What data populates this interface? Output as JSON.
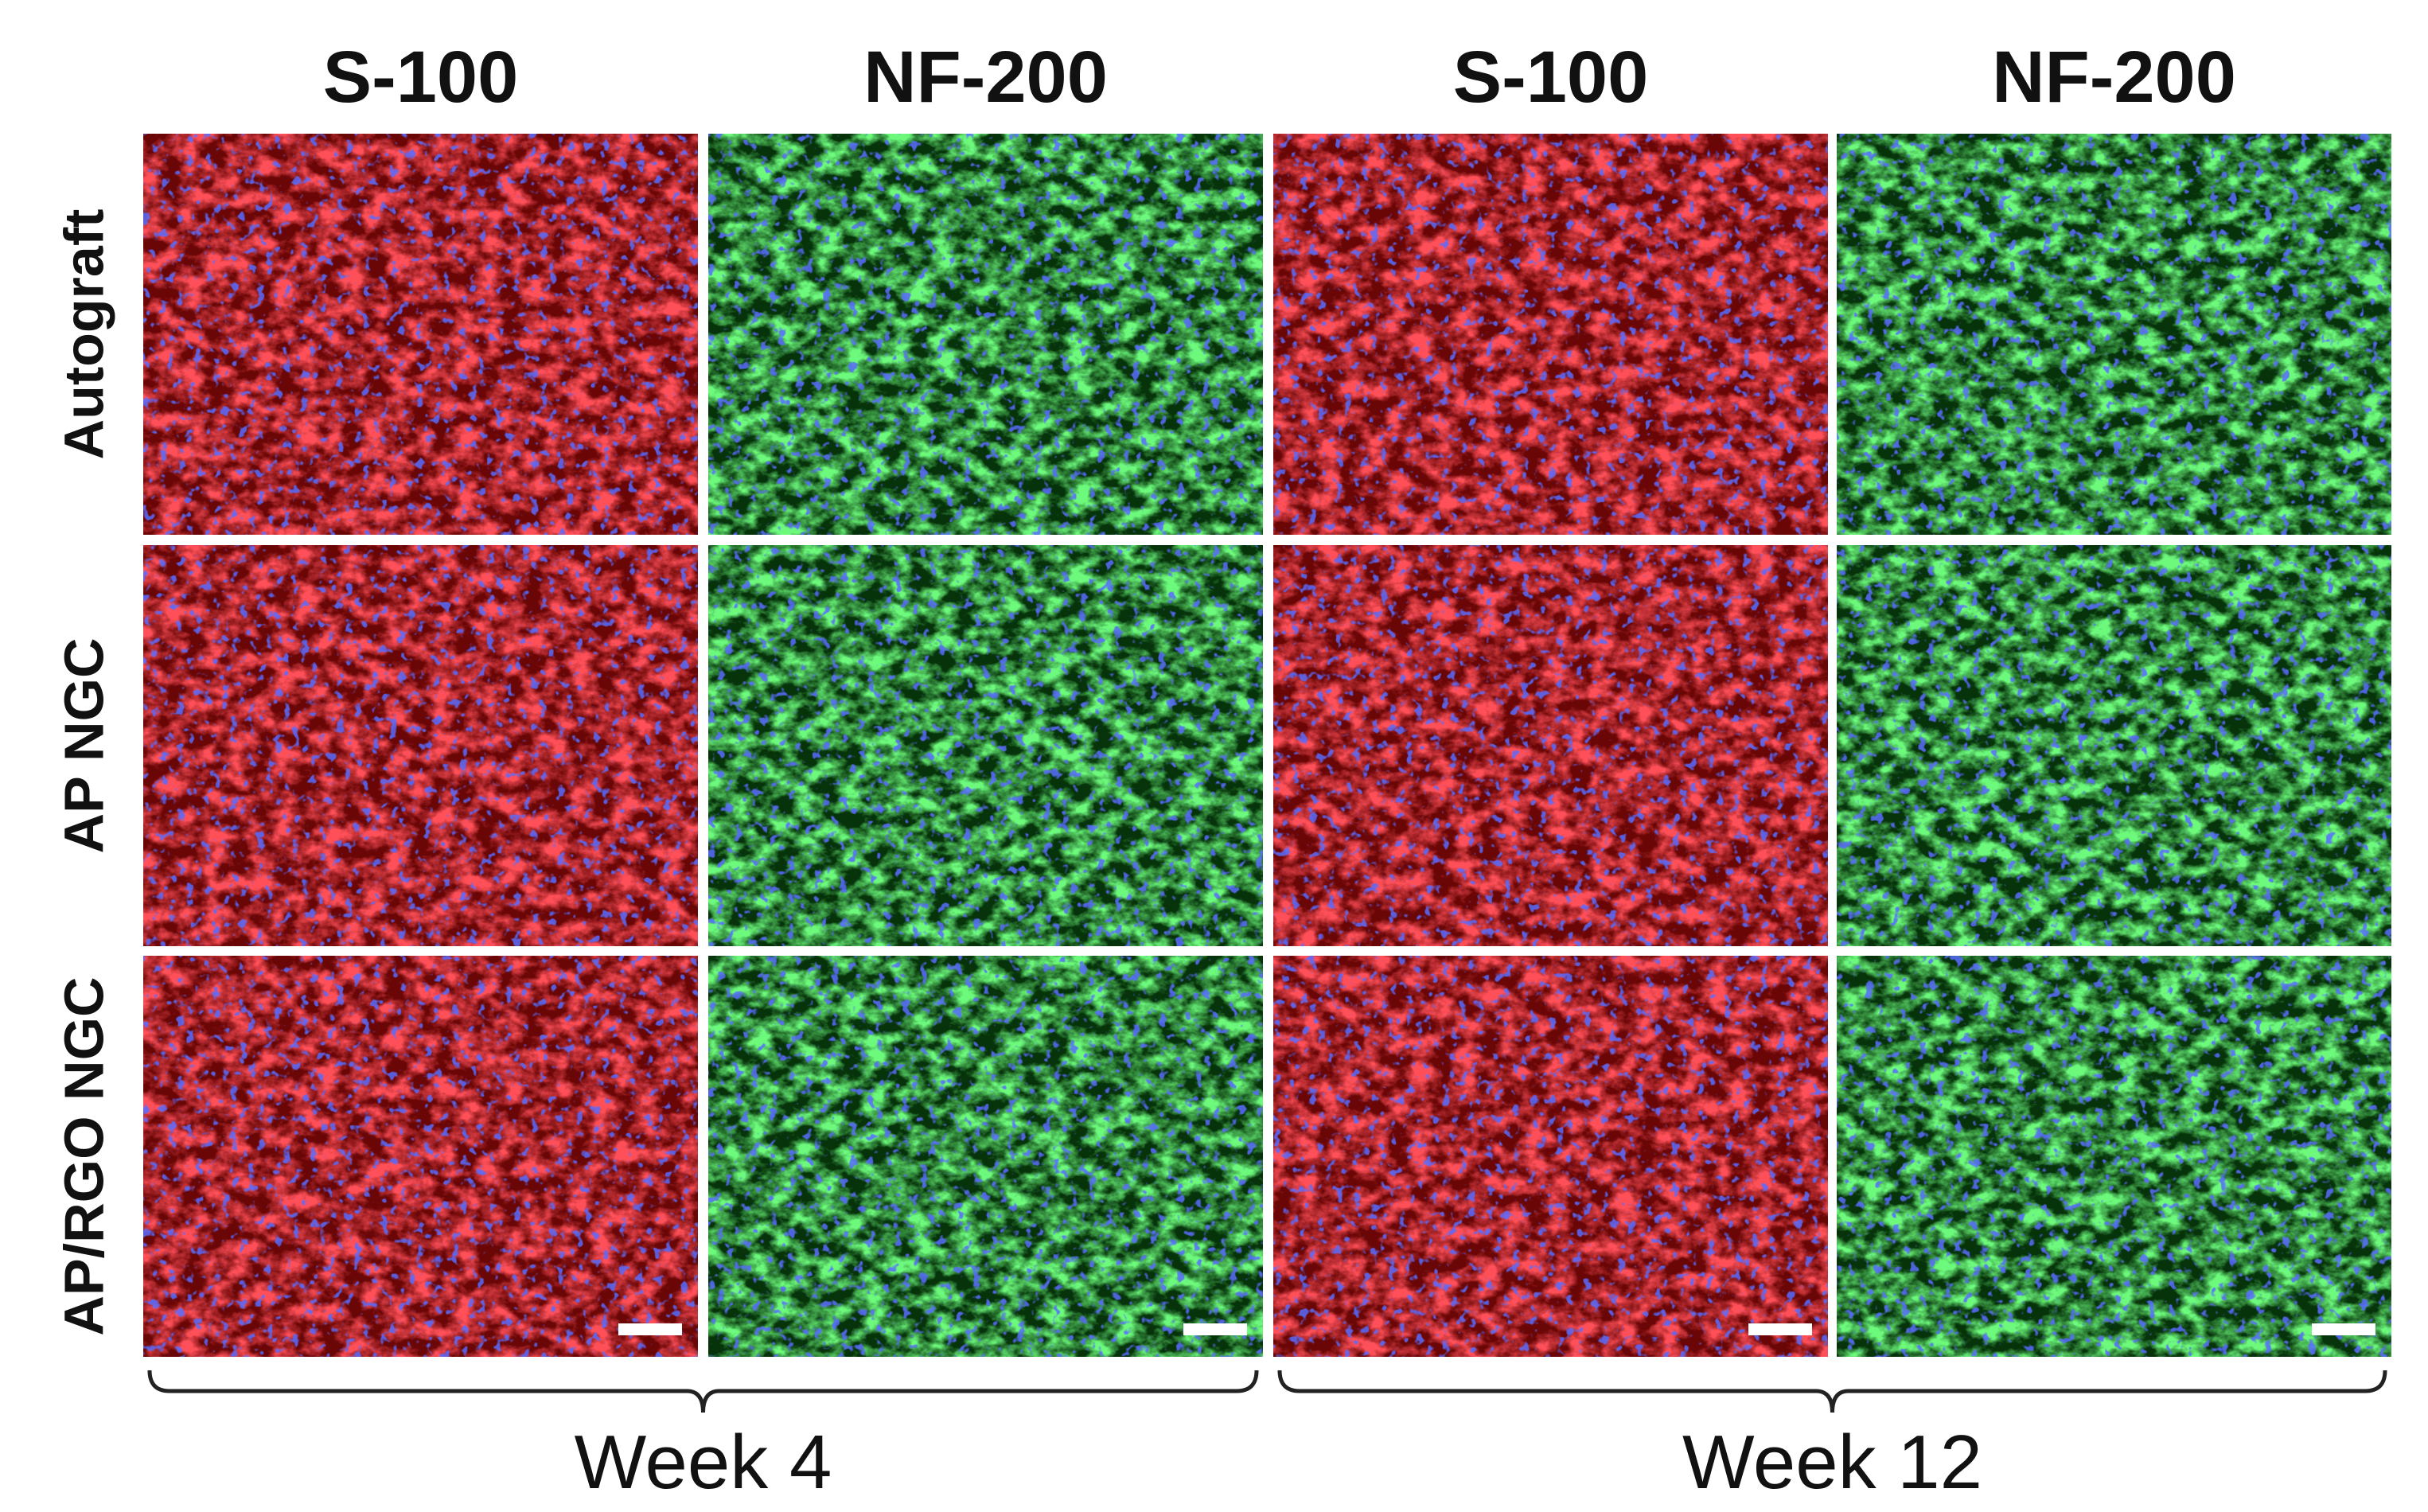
{
  "column_headers": [
    "S-100",
    "NF-200",
    "S-100",
    "NF-200"
  ],
  "row_labels": [
    "Autograft",
    "AP NGC",
    "AP/RGO NGC"
  ],
  "group_labels": [
    "Week 4",
    "Week 12"
  ]
}
